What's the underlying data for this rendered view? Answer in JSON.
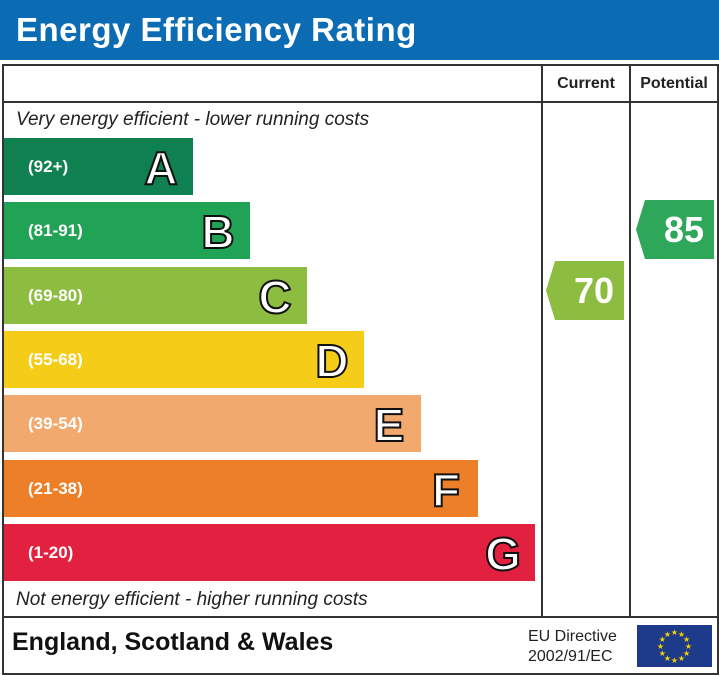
{
  "header": {
    "title": "Energy Efficiency Rating"
  },
  "columns": {
    "current": "Current",
    "potential": "Potential"
  },
  "notes": {
    "top": "Very energy efficient - lower running costs",
    "bottom": "Not energy efficient - higher running costs"
  },
  "footer": {
    "region": "England, Scotland & Wales",
    "directive_line1": "EU Directive",
    "directive_line2": "2002/91/EC",
    "flag_icon": "eu-flag-icon"
  },
  "chart_data": {
    "type": "bar",
    "bands": [
      {
        "letter": "A",
        "range": "(92+)",
        "color": "#0f8050"
      },
      {
        "letter": "B",
        "range": "(81-91)",
        "color": "#21a355"
      },
      {
        "letter": "C",
        "range": "(69-80)",
        "color": "#8dbd40"
      },
      {
        "letter": "D",
        "range": "(55-68)",
        "color": "#f5cc18"
      },
      {
        "letter": "E",
        "range": "(39-54)",
        "color": "#f2a96e"
      },
      {
        "letter": "F",
        "range": "(21-38)",
        "color": "#ec7f28"
      },
      {
        "letter": "G",
        "range": "(1-20)",
        "color": "#e2203f"
      }
    ],
    "current": {
      "value": "70",
      "band": "C",
      "color": "#8dbd40"
    },
    "potential": {
      "value": "85",
      "band": "B",
      "color": "#2ea75a"
    }
  }
}
